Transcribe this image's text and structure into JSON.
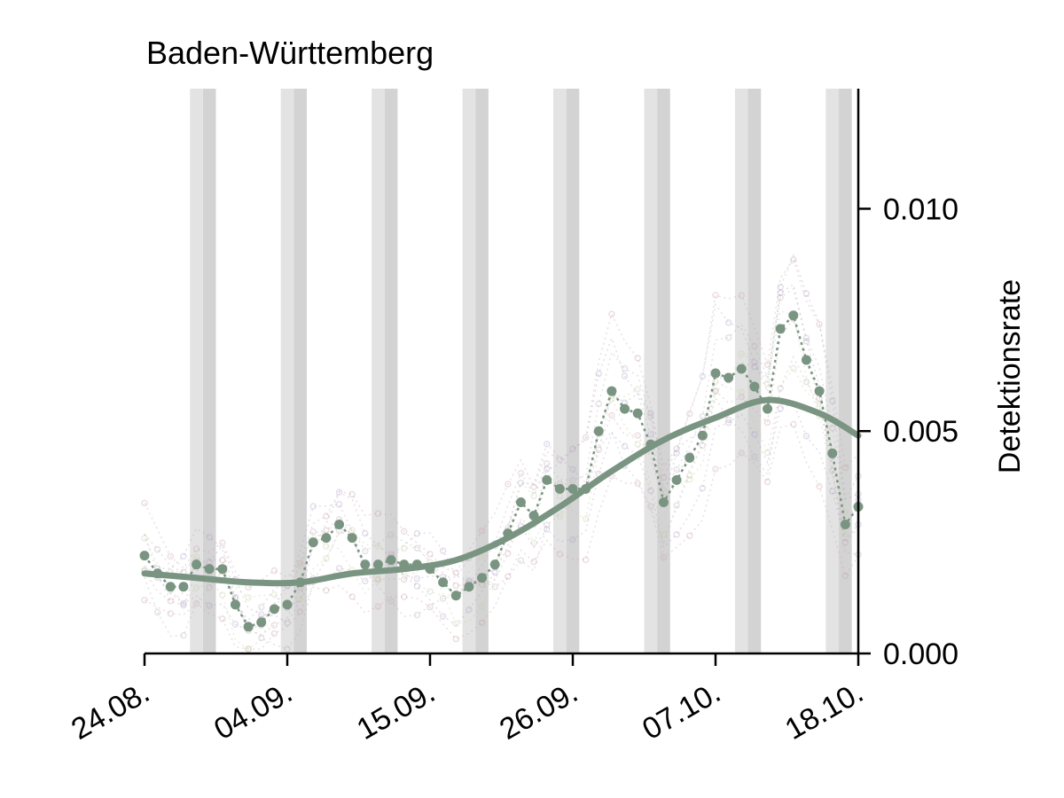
{
  "chart_data": {
    "type": "line",
    "title": "Baden-Württemberg",
    "xlabel": "",
    "ylabel": "Detektionsrate",
    "x_ticks": [
      "24.08.",
      "04.09.",
      "15.09.",
      "26.09.",
      "07.10.",
      "18.10."
    ],
    "y_ticks": [
      "0.000",
      "0.005",
      "0.010"
    ],
    "xlim": [
      "2021-08-24",
      "2021-10-18"
    ],
    "ylim": [
      0.0,
      0.0127
    ],
    "y_axis_side": "right",
    "grid": false,
    "weekend_shading": true,
    "weekend_shading_color": "#d3d3d3",
    "colors": {
      "highlight": "#7a9482",
      "background_series": [
        "#c9a0a8",
        "#b0a0c4",
        "#c4cfa0",
        "#b8b0b8"
      ]
    },
    "series": [
      {
        "role": "observed",
        "style": "dotted-with-markers",
        "x": [
          "2021-08-24",
          "2021-08-25",
          "2021-08-26",
          "2021-08-27",
          "2021-08-28",
          "2021-08-29",
          "2021-08-30",
          "2021-08-31",
          "2021-09-01",
          "2021-09-02",
          "2021-09-03",
          "2021-09-04",
          "2021-09-05",
          "2021-09-06",
          "2021-09-07",
          "2021-09-08",
          "2021-09-09",
          "2021-09-10",
          "2021-09-11",
          "2021-09-12",
          "2021-09-13",
          "2021-09-14",
          "2021-09-15",
          "2021-09-16",
          "2021-09-17",
          "2021-09-18",
          "2021-09-19",
          "2021-09-20",
          "2021-09-21",
          "2021-09-22",
          "2021-09-23",
          "2021-09-24",
          "2021-09-25",
          "2021-09-26",
          "2021-09-27",
          "2021-09-28",
          "2021-09-29",
          "2021-09-30",
          "2021-10-01",
          "2021-10-02",
          "2021-10-03",
          "2021-10-04",
          "2021-10-05",
          "2021-10-06",
          "2021-10-07",
          "2021-10-08",
          "2021-10-09",
          "2021-10-10",
          "2021-10-11",
          "2021-10-12",
          "2021-10-13",
          "2021-10-14",
          "2021-10-15",
          "2021-10-16",
          "2021-10-17",
          "2021-10-18"
        ],
        "y": [
          0.0022,
          0.0018,
          0.0015,
          0.0015,
          0.002,
          0.0019,
          0.0019,
          0.0011,
          0.0006,
          0.0007,
          0.001,
          0.0011,
          0.0016,
          0.0025,
          0.0026,
          0.0029,
          0.0026,
          0.002,
          0.002,
          0.0021,
          0.002,
          0.002,
          0.0019,
          0.0016,
          0.0013,
          0.0015,
          0.0017,
          0.002,
          0.0027,
          0.0034,
          0.0031,
          0.0039,
          0.0037,
          0.0037,
          0.0037,
          0.005,
          0.0059,
          0.0055,
          0.0054,
          0.0047,
          0.0034,
          0.0039,
          0.0044,
          0.0049,
          0.0063,
          0.0062,
          0.0064,
          0.006,
          0.0055,
          0.0073,
          0.0076,
          0.0066,
          0.0059,
          0.0045,
          0.0029,
          0.0033
        ]
      },
      {
        "role": "trend",
        "style": "solid",
        "x": [
          "2021-08-24",
          "2021-08-28",
          "2021-09-01",
          "2021-09-05",
          "2021-09-09",
          "2021-09-13",
          "2021-09-17",
          "2021-09-21",
          "2021-09-25",
          "2021-09-29",
          "2021-10-03",
          "2021-10-07",
          "2021-10-11",
          "2021-10-15",
          "2021-10-18"
        ],
        "y": [
          0.0018,
          0.0017,
          0.0016,
          0.0016,
          0.0018,
          0.0019,
          0.0021,
          0.0026,
          0.0033,
          0.0041,
          0.0048,
          0.0053,
          0.0057,
          0.0054,
          0.0049
        ]
      }
    ],
    "weekends": [
      "2021-08-28",
      "2021-08-29",
      "2021-09-04",
      "2021-09-05",
      "2021-09-11",
      "2021-09-12",
      "2021-09-18",
      "2021-09-19",
      "2021-09-25",
      "2021-09-26",
      "2021-10-02",
      "2021-10-03",
      "2021-10-09",
      "2021-10-10",
      "2021-10-16",
      "2021-10-17"
    ]
  }
}
